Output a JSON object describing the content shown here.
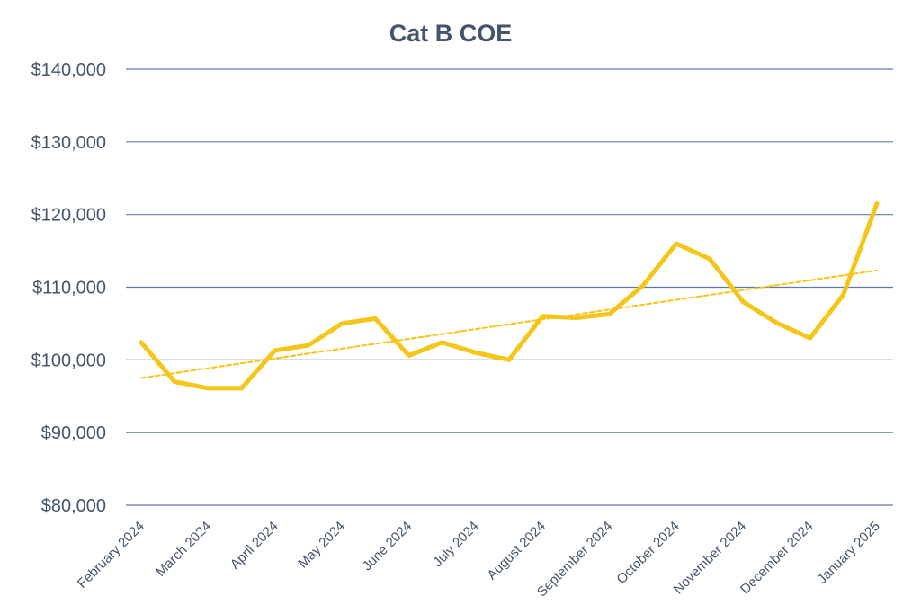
{
  "chart_data": {
    "type": "line",
    "title": "Cat B COE",
    "xlabel": "",
    "ylabel": "",
    "ylim": [
      80000,
      140000
    ],
    "y_ticks": [
      80000,
      90000,
      100000,
      110000,
      120000,
      130000,
      140000
    ],
    "y_tick_labels": [
      "$80,000",
      "$90,000",
      "$100,000",
      "$110,000",
      "$120,000",
      "$130,000",
      "$140,000"
    ],
    "x_ticks": [
      "February 2024",
      "March 2024",
      "April 2024",
      "May 2024",
      "June 2024",
      "July 2024",
      "August 2024",
      "September 2024",
      "October 2024",
      "November 2024",
      "December 2024",
      "January 2025"
    ],
    "grid": true,
    "legend": "none",
    "series": [
      {
        "name": "Cat B COE",
        "color": "#f5c518",
        "style": "solid",
        "x_index": [
          0,
          0.5,
          1,
          1.5,
          2,
          2.5,
          3,
          3.5,
          4,
          4.5,
          5,
          5.5,
          6,
          6.5,
          7,
          7.5,
          8,
          8.5,
          9,
          9.5,
          10,
          10.5,
          11
        ],
        "values": [
          102400,
          97000,
          96100,
          96100,
          101300,
          102000,
          105000,
          105700,
          100600,
          102400,
          101000,
          100000,
          106000,
          105800,
          106300,
          110200,
          116000,
          113900,
          108000,
          105100,
          103000,
          109000,
          121500
        ]
      },
      {
        "name": "Linear trend",
        "color": "#f5c518",
        "style": "dashed",
        "x_index": [
          0,
          11
        ],
        "values": [
          97500,
          112300
        ]
      }
    ]
  }
}
